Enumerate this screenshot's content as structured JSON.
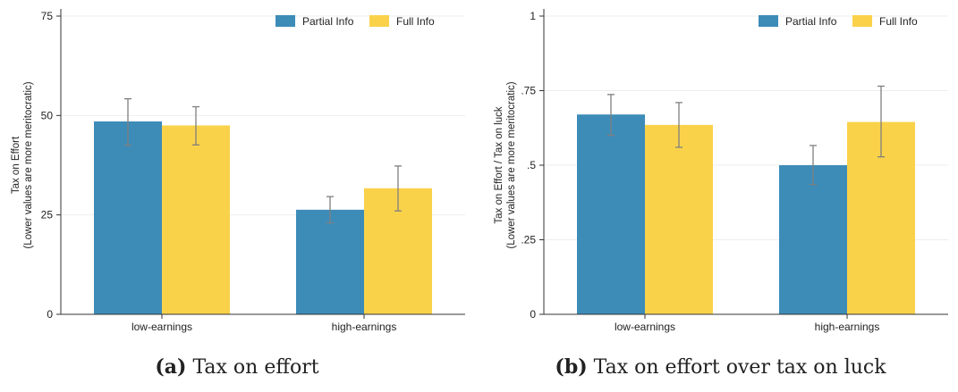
{
  "colors": {
    "partial": "#3d8cb8",
    "full": "#fad24a",
    "error_bar": "#7f7f7f",
    "grid": "#eeeeee",
    "axis": "#333333"
  },
  "chart_data": [
    {
      "type": "bar",
      "caption_label": "(a)",
      "caption_text": "Tax on effort",
      "ylabel_line1": "Tax on Effort",
      "ylabel_line2": "(Lower values are more meritocratic)",
      "xlabel": "",
      "categories": [
        "low-earnings",
        "high-earnings"
      ],
      "ylim": [
        0,
        75
      ],
      "yticks": [
        0,
        25,
        50,
        75
      ],
      "ytick_labels": [
        "0",
        "25",
        "50",
        "75"
      ],
      "grid": true,
      "legend_position": "top-right",
      "series": [
        {
          "name": "Partial Info",
          "values": [
            48.5,
            26.3
          ],
          "ci_low": [
            42.5,
            23.0
          ],
          "ci_high": [
            54.2,
            29.6
          ]
        },
        {
          "name": "Full Info",
          "values": [
            47.5,
            31.7
          ],
          "ci_low": [
            42.6,
            26.0
          ],
          "ci_high": [
            52.2,
            37.3
          ]
        }
      ]
    },
    {
      "type": "bar",
      "caption_label": "(b)",
      "caption_text": "Tax on effort over tax on luck",
      "ylabel_line1": "Tax on Effort / Tax on luck",
      "ylabel_line2": "(Lower values are more meritocratic)",
      "xlabel": "",
      "categories": [
        "low-earnings",
        "high-earnings"
      ],
      "ylim": [
        0,
        1
      ],
      "yticks": [
        0,
        0.25,
        0.5,
        0.75,
        1
      ],
      "ytick_labels": [
        "0",
        ".25",
        ".5",
        ".75",
        "1"
      ],
      "grid": true,
      "legend_position": "top-right",
      "series": [
        {
          "name": "Partial Info",
          "values": [
            0.67,
            0.5
          ],
          "ci_low": [
            0.6,
            0.435
          ],
          "ci_high": [
            0.737,
            0.566
          ]
        },
        {
          "name": "Full Info",
          "values": [
            0.635,
            0.645
          ],
          "ci_low": [
            0.56,
            0.528
          ],
          "ci_high": [
            0.71,
            0.765
          ]
        }
      ]
    }
  ]
}
